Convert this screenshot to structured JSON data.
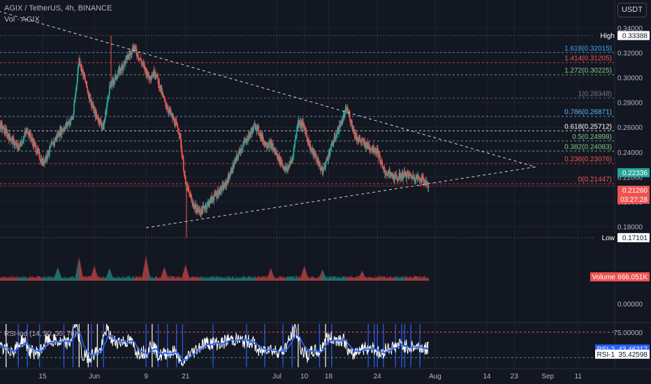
{
  "header": {
    "title": "AGIX / TetherUS, 4h, BINANCE",
    "volume_label": "Vol · AGIX",
    "currency_button": "USDT"
  },
  "colors": {
    "background": "#131722",
    "up": "#26a69a",
    "down": "#ef5350",
    "rsi_line": "#2962ff",
    "rsi_raw": "#ffffff",
    "grid": "#1e222d"
  },
  "chart_data": [
    {
      "type": "candlestick",
      "title": "AGIX / TetherUS, 4h, BINANCE",
      "ylim": [
        0.16,
        0.34
      ],
      "y_ticks": [
        "0.34000",
        "0.32000",
        "0.30000",
        "0.28000",
        "0.26000",
        "0.24000",
        "0.22000",
        "0.20000",
        "0.18000"
      ],
      "y_tick_values": [
        0.34,
        0.32,
        0.3,
        0.28,
        0.26,
        0.24,
        0.22,
        0.2,
        0.18
      ],
      "x_ticks": [
        "15",
        "Jun",
        "9",
        "21",
        "Jul",
        "10",
        "18",
        "24",
        "Aug",
        "14",
        "23",
        "Sep",
        "11"
      ],
      "x_tick_days": [
        15,
        32,
        49,
        62,
        92,
        101,
        109,
        125,
        144,
        161,
        170,
        181,
        191
      ],
      "x_domain_days": [
        1,
        203
      ],
      "price_path_days": [
        1,
        7,
        10,
        15,
        20,
        25,
        27,
        30,
        32,
        35,
        37,
        40,
        45,
        50,
        52,
        55,
        60,
        62,
        65,
        67,
        72,
        75,
        80,
        85,
        88,
        90,
        95,
        97,
        99,
        101,
        103,
        105,
        107,
        110,
        115,
        118,
        121,
        125,
        127,
        131,
        134,
        137,
        140,
        142
      ],
      "price_path": [
        0.262,
        0.243,
        0.258,
        0.231,
        0.254,
        0.268,
        0.315,
        0.288,
        0.272,
        0.26,
        0.292,
        0.304,
        0.325,
        0.3,
        0.305,
        0.281,
        0.256,
        0.214,
        0.195,
        0.192,
        0.206,
        0.213,
        0.242,
        0.262,
        0.247,
        0.246,
        0.225,
        0.234,
        0.265,
        0.26,
        0.243,
        0.235,
        0.224,
        0.245,
        0.275,
        0.252,
        0.246,
        0.241,
        0.225,
        0.219,
        0.222,
        0.22,
        0.218,
        0.2126
      ],
      "fib_levels": [
        {
          "ratio": "1.618",
          "price": "0.32015",
          "label": "1.618(0.32015)",
          "value": 0.32015,
          "color": "#42a5f5",
          "style": "dashed"
        },
        {
          "ratio": "1.414",
          "price": "0.31205",
          "label": "1.414(0.31205)",
          "value": 0.31205,
          "color": "#ef5350",
          "style": "dashed"
        },
        {
          "ratio": "1.272",
          "price": "0.30225",
          "label": "1.272(0.30225)",
          "value": 0.30225,
          "color": "#81c784",
          "style": "dashed"
        },
        {
          "ratio": "1",
          "price": "0.28348",
          "label": "1(0.28348)",
          "value": 0.28348,
          "color": "#787b86",
          "style": "dashed"
        },
        {
          "ratio": "0.786",
          "price": "0.26871",
          "label": "0.786(0.26871)",
          "value": 0.26871,
          "color": "#64b5f6",
          "style": "dashed"
        },
        {
          "ratio": "0.618",
          "price": "0.25712",
          "label": "0.618(0.25712)",
          "value": 0.25712,
          "color": "#ffffff",
          "style": "dashed"
        },
        {
          "ratio": "0.5",
          "price": "0.24898",
          "label": "0.5(0.24898)",
          "value": 0.24898,
          "color": "#81c784",
          "style": "dashed"
        },
        {
          "ratio": "0.382",
          "price": "0.24083",
          "label": "0.382(0.24083)",
          "value": 0.24083,
          "color": "#81c784",
          "style": "dashed"
        },
        {
          "ratio": "0.236",
          "price": "0.23076",
          "label": "0.236(0.23076)",
          "value": 0.23076,
          "color": "#ef5350",
          "style": "dashed"
        },
        {
          "ratio": "0",
          "price": "0.21447",
          "label": "0(0.21447)",
          "value": 0.21447,
          "color": "#ef5350",
          "style": "dashed"
        }
      ],
      "trendlines": [
        {
          "name": "upper-resistance",
          "from": [
            -3,
            0.356
          ],
          "to": [
            177,
            0.228
          ]
        },
        {
          "name": "lower-support",
          "from": [
            49,
            0.179
          ],
          "to": [
            177,
            0.228
          ]
        }
      ],
      "price_labels": {
        "high": {
          "tag": "High",
          "value": "0.33388",
          "number": 0.33388
        },
        "low": {
          "tag": "Low",
          "value": "0.17101",
          "number": 0.17101
        },
        "green_marker": {
          "value": "0.22336",
          "number": 0.22336
        },
        "current": {
          "value": "0.21260",
          "countdown": "03:27:28",
          "number": 0.2126
        }
      }
    },
    {
      "type": "bar",
      "title": "Vol · AGIX",
      "label": "Volume",
      "value": "666.051K",
      "ylim_label_zero": "0.00000",
      "volume_peaks_days": [
        20,
        27,
        32,
        37,
        49,
        55,
        62,
        90,
        101,
        107,
        120
      ],
      "volume_peaks": [
        0.55,
        0.95,
        0.6,
        0.5,
        1.0,
        0.55,
        0.65,
        0.5,
        0.6,
        0.45,
        0.4
      ]
    },
    {
      "type": "line",
      "title": "RSI-ind (14, 50, 30, 70)",
      "y_tick": "75.00000",
      "rsi2": {
        "name": "RSI-2",
        "value": "43.46217",
        "number": 43.46217
      },
      "rsi1": {
        "name": "RSI-1",
        "value": "35.42598",
        "number": 35.42598
      },
      "upper_band": 70,
      "lower_band": 30,
      "ylim": [
        15,
        85
      ],
      "signal_days": [
        3,
        7,
        10,
        14,
        22,
        25,
        27,
        30,
        31,
        33,
        35,
        49,
        51,
        53,
        56,
        59,
        61,
        71,
        82,
        88,
        94,
        97,
        99,
        106,
        108,
        110,
        122,
        124,
        125,
        127,
        131,
        133,
        134,
        136,
        139
      ]
    }
  ]
}
